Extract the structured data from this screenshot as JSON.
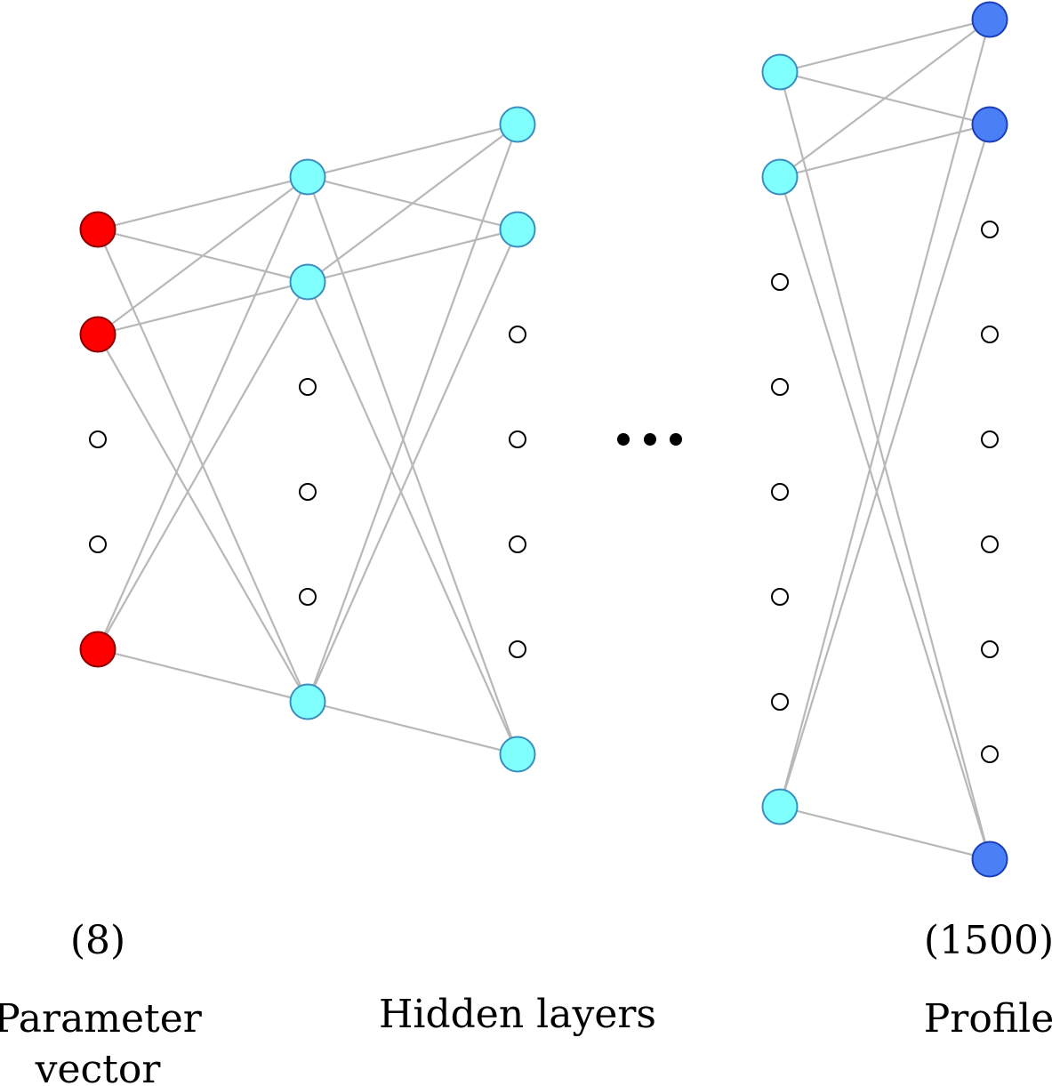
{
  "labels": {
    "input_count": "(8)",
    "output_count": "(1500)",
    "input_title_line1": "Parameter",
    "input_title_line2": "vector",
    "hidden_title": "Hidden layers",
    "output_title": "Profile"
  },
  "colors": {
    "input_node": "#ff0000",
    "hidden_node": "#80ffff",
    "output_node": "#4a7ff5",
    "edge": "#b8b8b8"
  },
  "layers": [
    {
      "name": "input",
      "active_nodes": 3,
      "ellipsis_nodes": 2
    },
    {
      "name": "hidden-1",
      "active_nodes": 3,
      "ellipsis_nodes": 3
    },
    {
      "name": "hidden-2",
      "active_nodes": 3,
      "ellipsis_nodes": 5
    },
    {
      "name": "hidden-last",
      "active_nodes": 3,
      "ellipsis_nodes": 5
    },
    {
      "name": "output",
      "active_nodes": 3,
      "ellipsis_nodes": 7
    }
  ],
  "gap_icon": "ellipsis-dots-icon"
}
